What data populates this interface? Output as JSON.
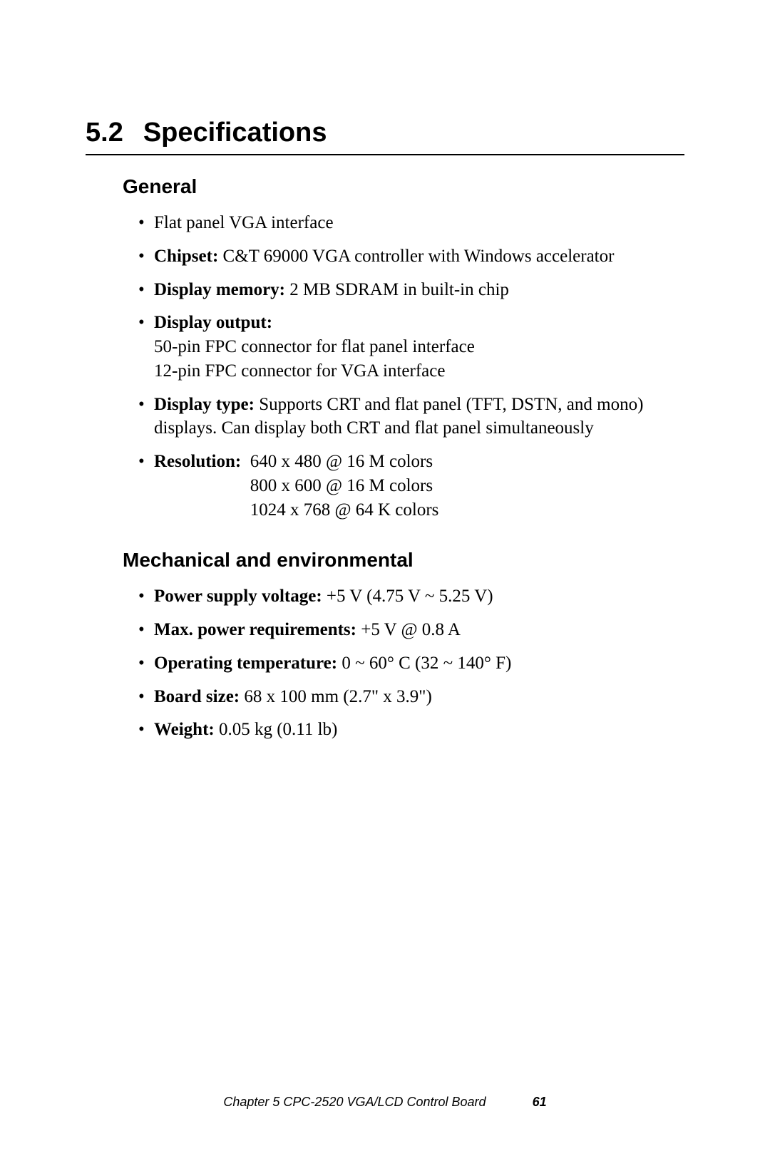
{
  "section": {
    "number": "5.2",
    "title": "Specifications"
  },
  "general": {
    "heading": "General",
    "items": {
      "flat_panel": "Flat panel VGA interface",
      "chipset_label": "Chipset:",
      "chipset_value": " C&T 69000 VGA controller with Windows accelerator",
      "memory_label": "Display memory:",
      "memory_value": " 2 MB SDRAM in built-in chip",
      "output_label": "Display output:",
      "output_line1": "50-pin FPC connector for flat panel interface",
      "output_line2": "12-pin FPC connector for VGA interface",
      "type_label": "Display type:",
      "type_value": " Supports CRT and flat panel (TFT, DSTN, and mono) displays. Can display both CRT and flat panel simultaneously",
      "resolution_label": "Resolution:",
      "resolution_1": "640 x 480 @ 16 M colors",
      "resolution_2": "800 x 600 @ 16 M colors",
      "resolution_3": "1024 x 768 @ 64 K colors"
    }
  },
  "mechanical": {
    "heading": "Mechanical and environmental",
    "items": {
      "voltage_label": "Power supply voltage:",
      "voltage_value": " +5 V (4.75 V ~ 5.25 V)",
      "power_label": "Max. power requirements:",
      "power_value": " +5 V @ 0.8 A",
      "temp_label": "Operating temperature:",
      "temp_value": " 0 ~ 60° C (32 ~ 140° F)",
      "size_label": "Board size:",
      "size_value": " 68 x 100 mm (2.7\" x 3.9\")",
      "weight_label": "Weight:",
      "weight_value": " 0.05 kg (0.11 lb)"
    }
  },
  "footer": {
    "text": "Chapter 5  CPC-2520 VGA/LCD Control Board",
    "page": "61"
  },
  "styles": {
    "background_color": "#ffffff",
    "text_color": "#000000",
    "body_font": "Times New Roman",
    "heading_font": "Helvetica",
    "section_title_fontsize": 38,
    "subsection_fontsize": 28,
    "body_fontsize": 25,
    "footer_fontsize": 18
  }
}
